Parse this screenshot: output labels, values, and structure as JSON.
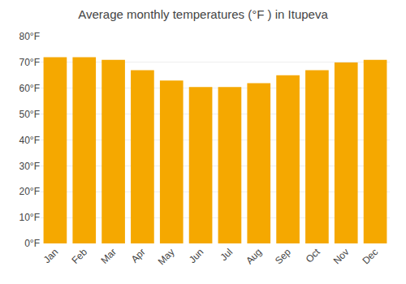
{
  "chart_data": {
    "type": "bar",
    "title": "Average monthly temperatures (°F ) in Itupeva",
    "categories": [
      "Jan",
      "Feb",
      "Mar",
      "Apr",
      "May",
      "Jun",
      "Jul",
      "Aug",
      "Sep",
      "Oct",
      "Nov",
      "Dec"
    ],
    "values": [
      72,
      72,
      71,
      67,
      63,
      60.5,
      60.5,
      62,
      65,
      67,
      70,
      71
    ],
    "color": "#F5A800",
    "ylim": [
      0,
      80
    ],
    "yticks": [
      {
        "value": 0,
        "label": "0°F"
      },
      {
        "value": 10,
        "label": "10°F"
      },
      {
        "value": 20,
        "label": "20°F"
      },
      {
        "value": 30,
        "label": "30°F"
      },
      {
        "value": 40,
        "label": "40°F"
      },
      {
        "value": 50,
        "label": "50°F"
      },
      {
        "value": 60,
        "label": "60°F"
      },
      {
        "value": 70,
        "label": "70°F"
      },
      {
        "value": 80,
        "label": "80°F"
      }
    ],
    "grid": true
  }
}
